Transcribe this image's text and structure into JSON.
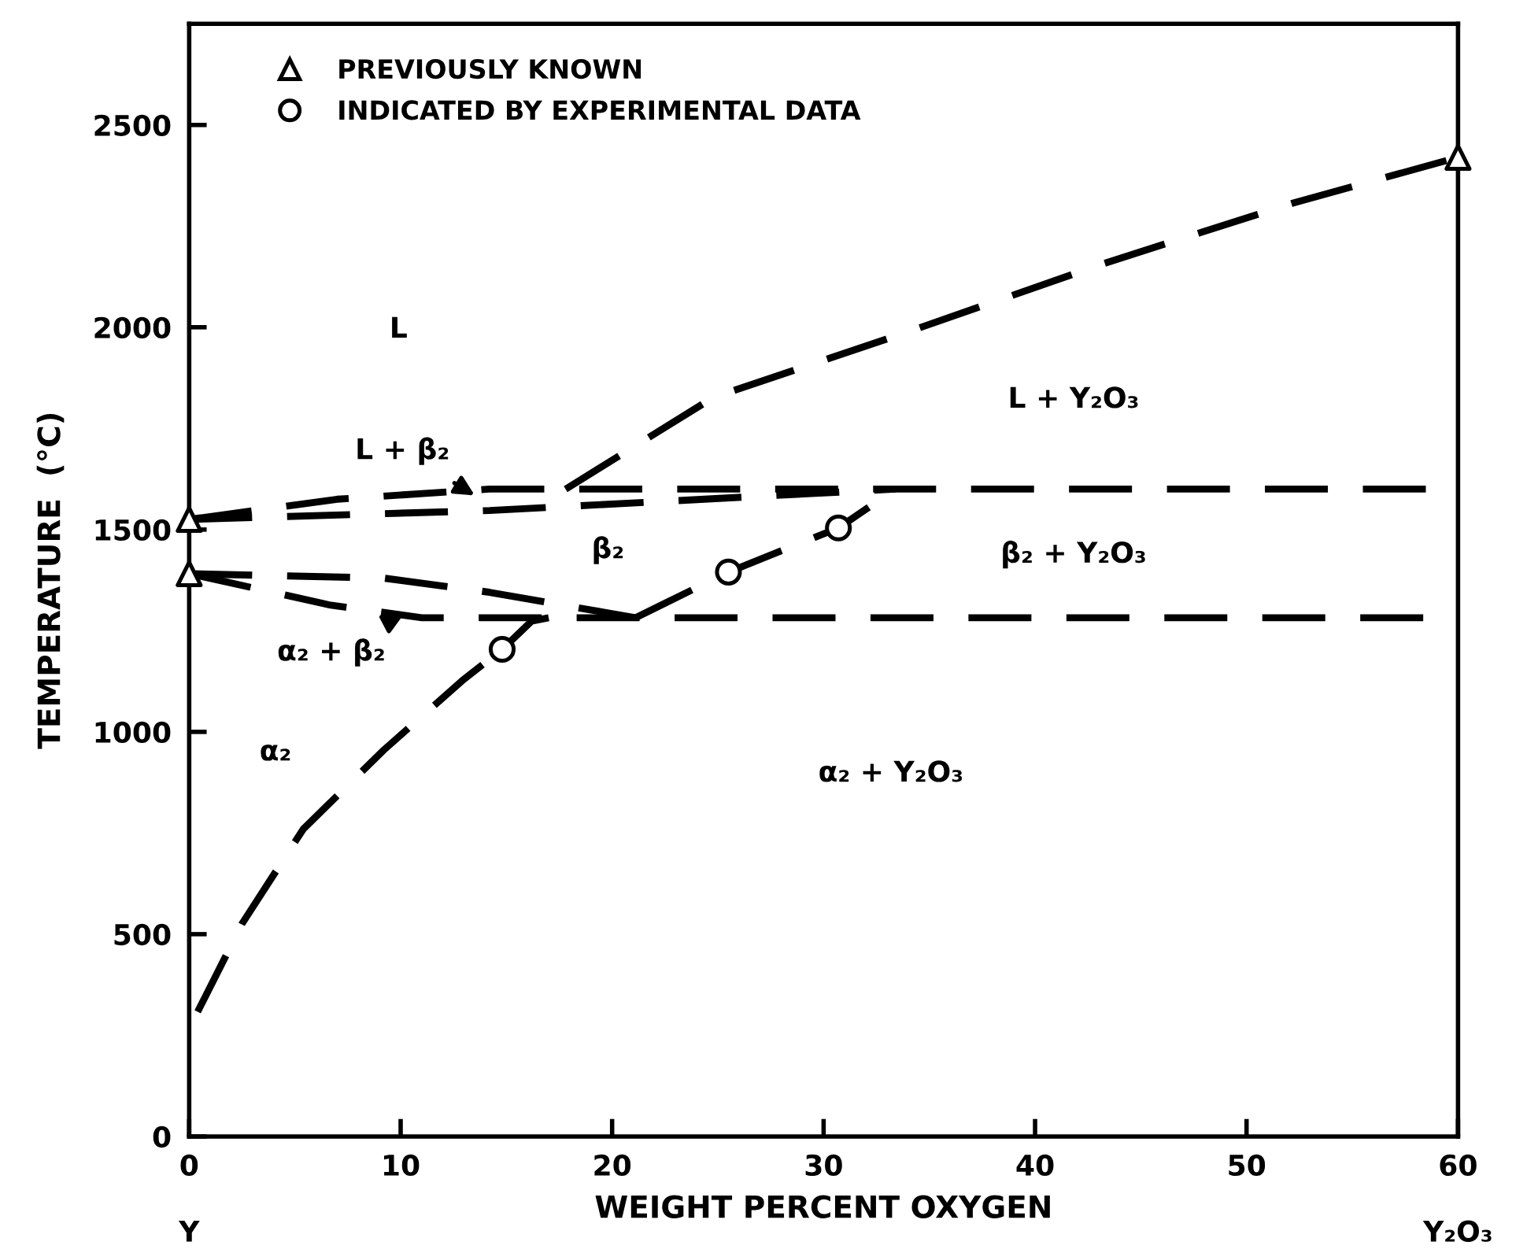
{
  "chart_data": {
    "type": "line",
    "xlabel": "WEIGHT PERCENT OXYGEN",
    "ylabel": "TEMPERATURE  (°C)",
    "xlim": [
      0,
      60
    ],
    "ylim": [
      0,
      2750
    ],
    "xticks": [
      0,
      10,
      20,
      30,
      40,
      50,
      60
    ],
    "yticks": [
      0,
      500,
      1000,
      1500,
      2000,
      2500
    ],
    "grid": false,
    "legend": "top left",
    "line_style": "dashed",
    "marker": "none",
    "series": [
      {
        "color": "#000000",
        "x": [
          17.8,
          24.8,
          33.9,
          43.1,
          52.2,
          60
        ],
        "values": [
          1600,
          1827,
          1987,
          2155,
          2307,
          2420
        ]
      },
      {
        "color": "#000000",
        "x": [
          0,
          7,
          14.2,
          60
        ],
        "values": [
          1525,
          1575,
          1600,
          1600
        ]
      },
      {
        "color": "#000000",
        "x": [
          0,
          14.2,
          33.4
        ],
        "values": [
          1525,
          1547,
          1600
        ]
      },
      {
        "color": "#000000",
        "x": [
          0,
          9.2,
          14.2,
          21.1
        ],
        "values": [
          1391,
          1380,
          1345,
          1282
        ]
      },
      {
        "color": "#000000",
        "x": [
          0,
          6.7,
          11.0,
          60
        ],
        "values": [
          1391,
          1313,
          1282,
          1282
        ]
      },
      {
        "color": "#000000",
        "x": [
          21.1,
          25.5,
          30.7,
          33.4
        ],
        "values": [
          1282,
          1395,
          1504,
          1600
        ]
      },
      {
        "color": "#000000",
        "x": [
          0.4,
          2.5,
          5.4,
          9.2,
          12.9,
          14.8,
          16.2,
          17.0
        ],
        "values": [
          308,
          526,
          760,
          955,
          1126,
          1204,
          1274,
          1282
        ]
      },
      {
        "type": "scatter",
        "name": "PREVIOUSLY KNOWN",
        "marker": "triangle",
        "color": "#000000",
        "x": [
          0,
          0,
          60
        ],
        "values": [
          1525,
          1391,
          2420
        ]
      },
      {
        "type": "scatter",
        "name": "INDICATED BY EXPERIMENTAL DATA",
        "marker": "circle",
        "color": "#000000",
        "x": [
          14.8,
          25.5,
          30.7
        ],
        "values": [
          1204,
          1395,
          1504
        ]
      }
    ],
    "annotations": [
      "L",
      "L + Y₂O₃",
      "L + β₂",
      "β₂",
      "β₂ + Y₂O₃",
      "α₂ + β₂",
      "α₂",
      "α₂ + Y₂O₃",
      "Y",
      "Y₂O₃"
    ]
  }
}
